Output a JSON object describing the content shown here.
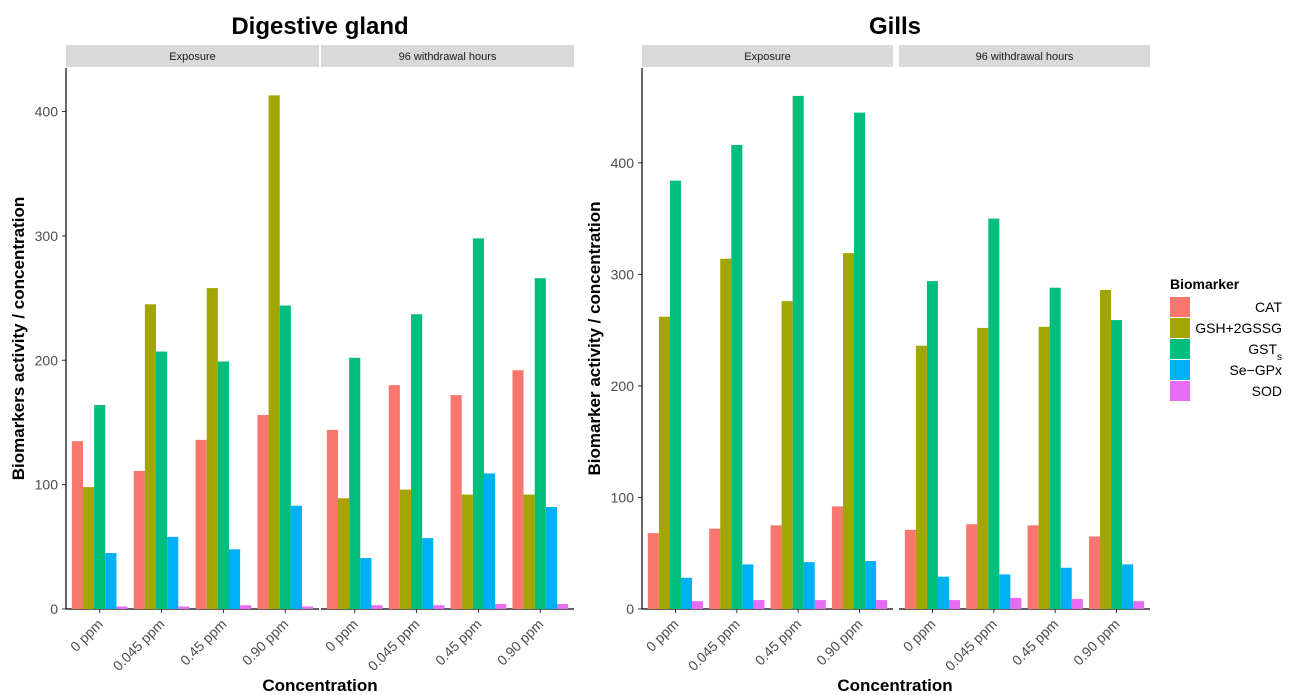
{
  "chart_data": [
    {
      "type": "bar",
      "title": "Digestive gland",
      "xlabel": "Concentration",
      "ylabel": "Biomarkers activity / concentration",
      "ylim": [
        0,
        435
      ],
      "yticks": [
        0,
        100,
        200,
        300,
        400
      ],
      "grid": false,
      "categories": [
        "0 ppm",
        "0.045 ppm",
        "0.45 ppm",
        "0.90 ppm"
      ],
      "panels": [
        {
          "label": "Exposure",
          "series": [
            {
              "name": "CAT",
              "values": [
                135,
                111,
                136,
                156
              ]
            },
            {
              "name": "GSH+2GSSG",
              "values": [
                98,
                245,
                258,
                413
              ]
            },
            {
              "name": "GSTs",
              "values": [
                164,
                207,
                199,
                244
              ]
            },
            {
              "name": "Se−GPx",
              "values": [
                45,
                58,
                48,
                83
              ]
            },
            {
              "name": "SOD",
              "values": [
                2,
                2,
                3,
                2
              ]
            }
          ]
        },
        {
          "label": "96 withdrawal hours",
          "series": [
            {
              "name": "CAT",
              "values": [
                144,
                180,
                172,
                192
              ]
            },
            {
              "name": "GSH+2GSSG",
              "values": [
                89,
                96,
                92,
                92
              ]
            },
            {
              "name": "GSTs",
              "values": [
                202,
                237,
                298,
                266
              ]
            },
            {
              "name": "Se−GPx",
              "values": [
                41,
                57,
                109,
                82
              ]
            },
            {
              "name": "SOD",
              "values": [
                3,
                3,
                4,
                4
              ]
            }
          ]
        }
      ]
    },
    {
      "type": "bar",
      "title": "Gills",
      "xlabel": "Concentration",
      "ylabel": "Biomarker activity / concentration",
      "ylim": [
        0,
        485
      ],
      "yticks": [
        0,
        100,
        200,
        300,
        400
      ],
      "grid": false,
      "categories": [
        "0 ppm",
        "0.045 ppm",
        "0.45 ppm",
        "0.90 ppm"
      ],
      "panels": [
        {
          "label": "Exposure",
          "series": [
            {
              "name": "CAT",
              "values": [
                68,
                72,
                75,
                92
              ]
            },
            {
              "name": "GSH+2GSSG",
              "values": [
                262,
                314,
                276,
                319
              ]
            },
            {
              "name": "GSTs",
              "values": [
                384,
                416,
                460,
                445
              ]
            },
            {
              "name": "Se−GPx",
              "values": [
                28,
                40,
                42,
                43
              ]
            },
            {
              "name": "SOD",
              "values": [
                7,
                8,
                8,
                8
              ]
            }
          ]
        },
        {
          "label": "96 withdrawal hours",
          "series": [
            {
              "name": "CAT",
              "values": [
                71,
                76,
                75,
                65
              ]
            },
            {
              "name": "GSH+2GSSG",
              "values": [
                236,
                252,
                253,
                286
              ]
            },
            {
              "name": "GSTs",
              "values": [
                294,
                350,
                288,
                259
              ]
            },
            {
              "name": "Se−GPx",
              "values": [
                29,
                31,
                37,
                40
              ]
            },
            {
              "name": "SOD",
              "values": [
                8,
                10,
                9,
                7
              ]
            }
          ]
        }
      ]
    }
  ],
  "legend": {
    "title": "Biomarker",
    "position": "right",
    "items": [
      {
        "label": "CAT",
        "sub": "",
        "color": "#F8766D"
      },
      {
        "label": "GSH+2GSSG",
        "sub": "",
        "color": "#A3A500"
      },
      {
        "label": "GST",
        "sub": "s",
        "color": "#00BF7D"
      },
      {
        "label": "Se−GPx",
        "sub": "",
        "color": "#00B0F6"
      },
      {
        "label": "SOD",
        "sub": "",
        "color": "#E76BF3"
      }
    ]
  }
}
